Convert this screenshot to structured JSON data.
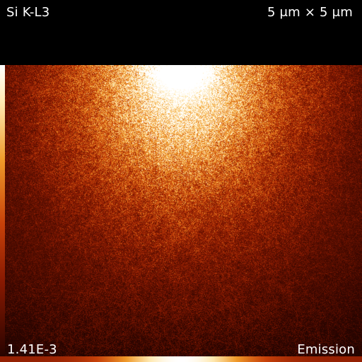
{
  "overlay": {
    "transition": "Si K-L3",
    "field_of_view": "5 μm × 5 μm",
    "scale_max": "1.41E-3",
    "mode": "Emission"
  },
  "colormap": {
    "name": "black-red-yellow-white heat",
    "stops": [
      "#000000",
      "#3a0700",
      "#8a1a02",
      "#c8420a",
      "#f09a2a",
      "#ffe9b0",
      "#ffffff"
    ]
  },
  "icons": {
    "left_scale": "vertical-color-scale",
    "bottom_scale": "horizontal-color-scale"
  }
}
